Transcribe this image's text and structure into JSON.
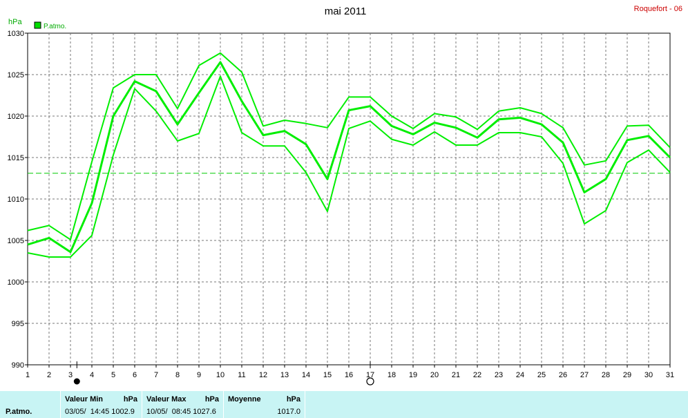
{
  "chart_data": {
    "type": "line",
    "title": "mai 2011",
    "station": "Roquefort - 06",
    "ylabel": "hPa",
    "legend": "P.atmo.",
    "legend_position": "top-left",
    "grid": true,
    "ylim": [
      990,
      1030
    ],
    "yticks": [
      "990",
      "995",
      "1000",
      "1005",
      "1010",
      "1015",
      "1020",
      "1025",
      "1030"
    ],
    "xticks": [
      "1",
      "2",
      "3",
      "4",
      "5",
      "6",
      "7",
      "8",
      "9",
      "10",
      "11",
      "12",
      "13",
      "14",
      "15",
      "16",
      "17",
      "18",
      "19",
      "20",
      "21",
      "22",
      "23",
      "24",
      "25",
      "26",
      "27",
      "28",
      "29",
      "30",
      "31"
    ],
    "mean_line": 1013.1,
    "moon_phases": [
      {
        "day": 3.3,
        "phase": "new"
      },
      {
        "day": 17.0,
        "phase": "full"
      }
    ],
    "series": [
      {
        "role": "max",
        "x": [
          1,
          2,
          3,
          4,
          5,
          6,
          7,
          8,
          9,
          10,
          11,
          12,
          13,
          14,
          15,
          16,
          17,
          18,
          19,
          20,
          21,
          22,
          23,
          24,
          25,
          26,
          27,
          28,
          29,
          30,
          31
        ],
        "values": [
          1006.2,
          1006.8,
          1005.1,
          1014.5,
          1023.4,
          1025.0,
          1025.0,
          1020.9,
          1026.1,
          1027.6,
          1025.3,
          1018.8,
          1019.5,
          1019.1,
          1018.6,
          1022.3,
          1022.3,
          1020.0,
          1018.5,
          1020.3,
          1019.9,
          1018.4,
          1020.6,
          1021.0,
          1020.3,
          1018.6,
          1014.1,
          1014.6,
          1018.8,
          1018.9,
          1016.2
        ]
      },
      {
        "role": "mean",
        "x": [
          1,
          2,
          3,
          4,
          5,
          6,
          7,
          8,
          9,
          10,
          11,
          12,
          13,
          14,
          15,
          16,
          17,
          18,
          19,
          20,
          21,
          22,
          23,
          24,
          25,
          26,
          27,
          28,
          29,
          30,
          31
        ],
        "values": [
          1004.5,
          1005.3,
          1003.6,
          1009.5,
          1020.0,
          1024.2,
          1023.0,
          1019.0,
          1022.8,
          1026.5,
          1021.8,
          1017.7,
          1018.2,
          1016.6,
          1012.4,
          1020.7,
          1021.2,
          1018.8,
          1017.8,
          1019.2,
          1018.6,
          1017.4,
          1019.6,
          1019.8,
          1019.0,
          1016.8,
          1010.8,
          1012.4,
          1017.1,
          1017.6,
          1015.0
        ]
      },
      {
        "role": "min",
        "x": [
          1,
          2,
          3,
          4,
          5,
          6,
          7,
          8,
          9,
          10,
          11,
          12,
          13,
          14,
          15,
          16,
          17,
          18,
          19,
          20,
          21,
          22,
          23,
          24,
          25,
          26,
          27,
          28,
          29,
          30,
          31
        ],
        "values": [
          1003.5,
          1003.0,
          1003.0,
          1005.6,
          1015.3,
          1023.3,
          1020.6,
          1017.0,
          1017.9,
          1024.8,
          1018.0,
          1016.4,
          1016.4,
          1013.2,
          1008.5,
          1018.5,
          1019.4,
          1017.2,
          1016.5,
          1018.1,
          1016.5,
          1016.5,
          1018.0,
          1018.0,
          1017.5,
          1014.3,
          1007.0,
          1008.6,
          1014.4,
          1015.9,
          1013.2
        ]
      }
    ]
  },
  "footer": {
    "row_label": "P.atmo.",
    "min": {
      "header": "Valeur Min",
      "unit": "hPa",
      "value": "03/05/  14:45 1002.9"
    },
    "max": {
      "header": "Valeur Max",
      "unit": "hPa",
      "value": "10/05/  08:45 1027.6"
    },
    "avg": {
      "header": "Moyenne",
      "unit": "hPa",
      "value": "1017.0"
    }
  }
}
